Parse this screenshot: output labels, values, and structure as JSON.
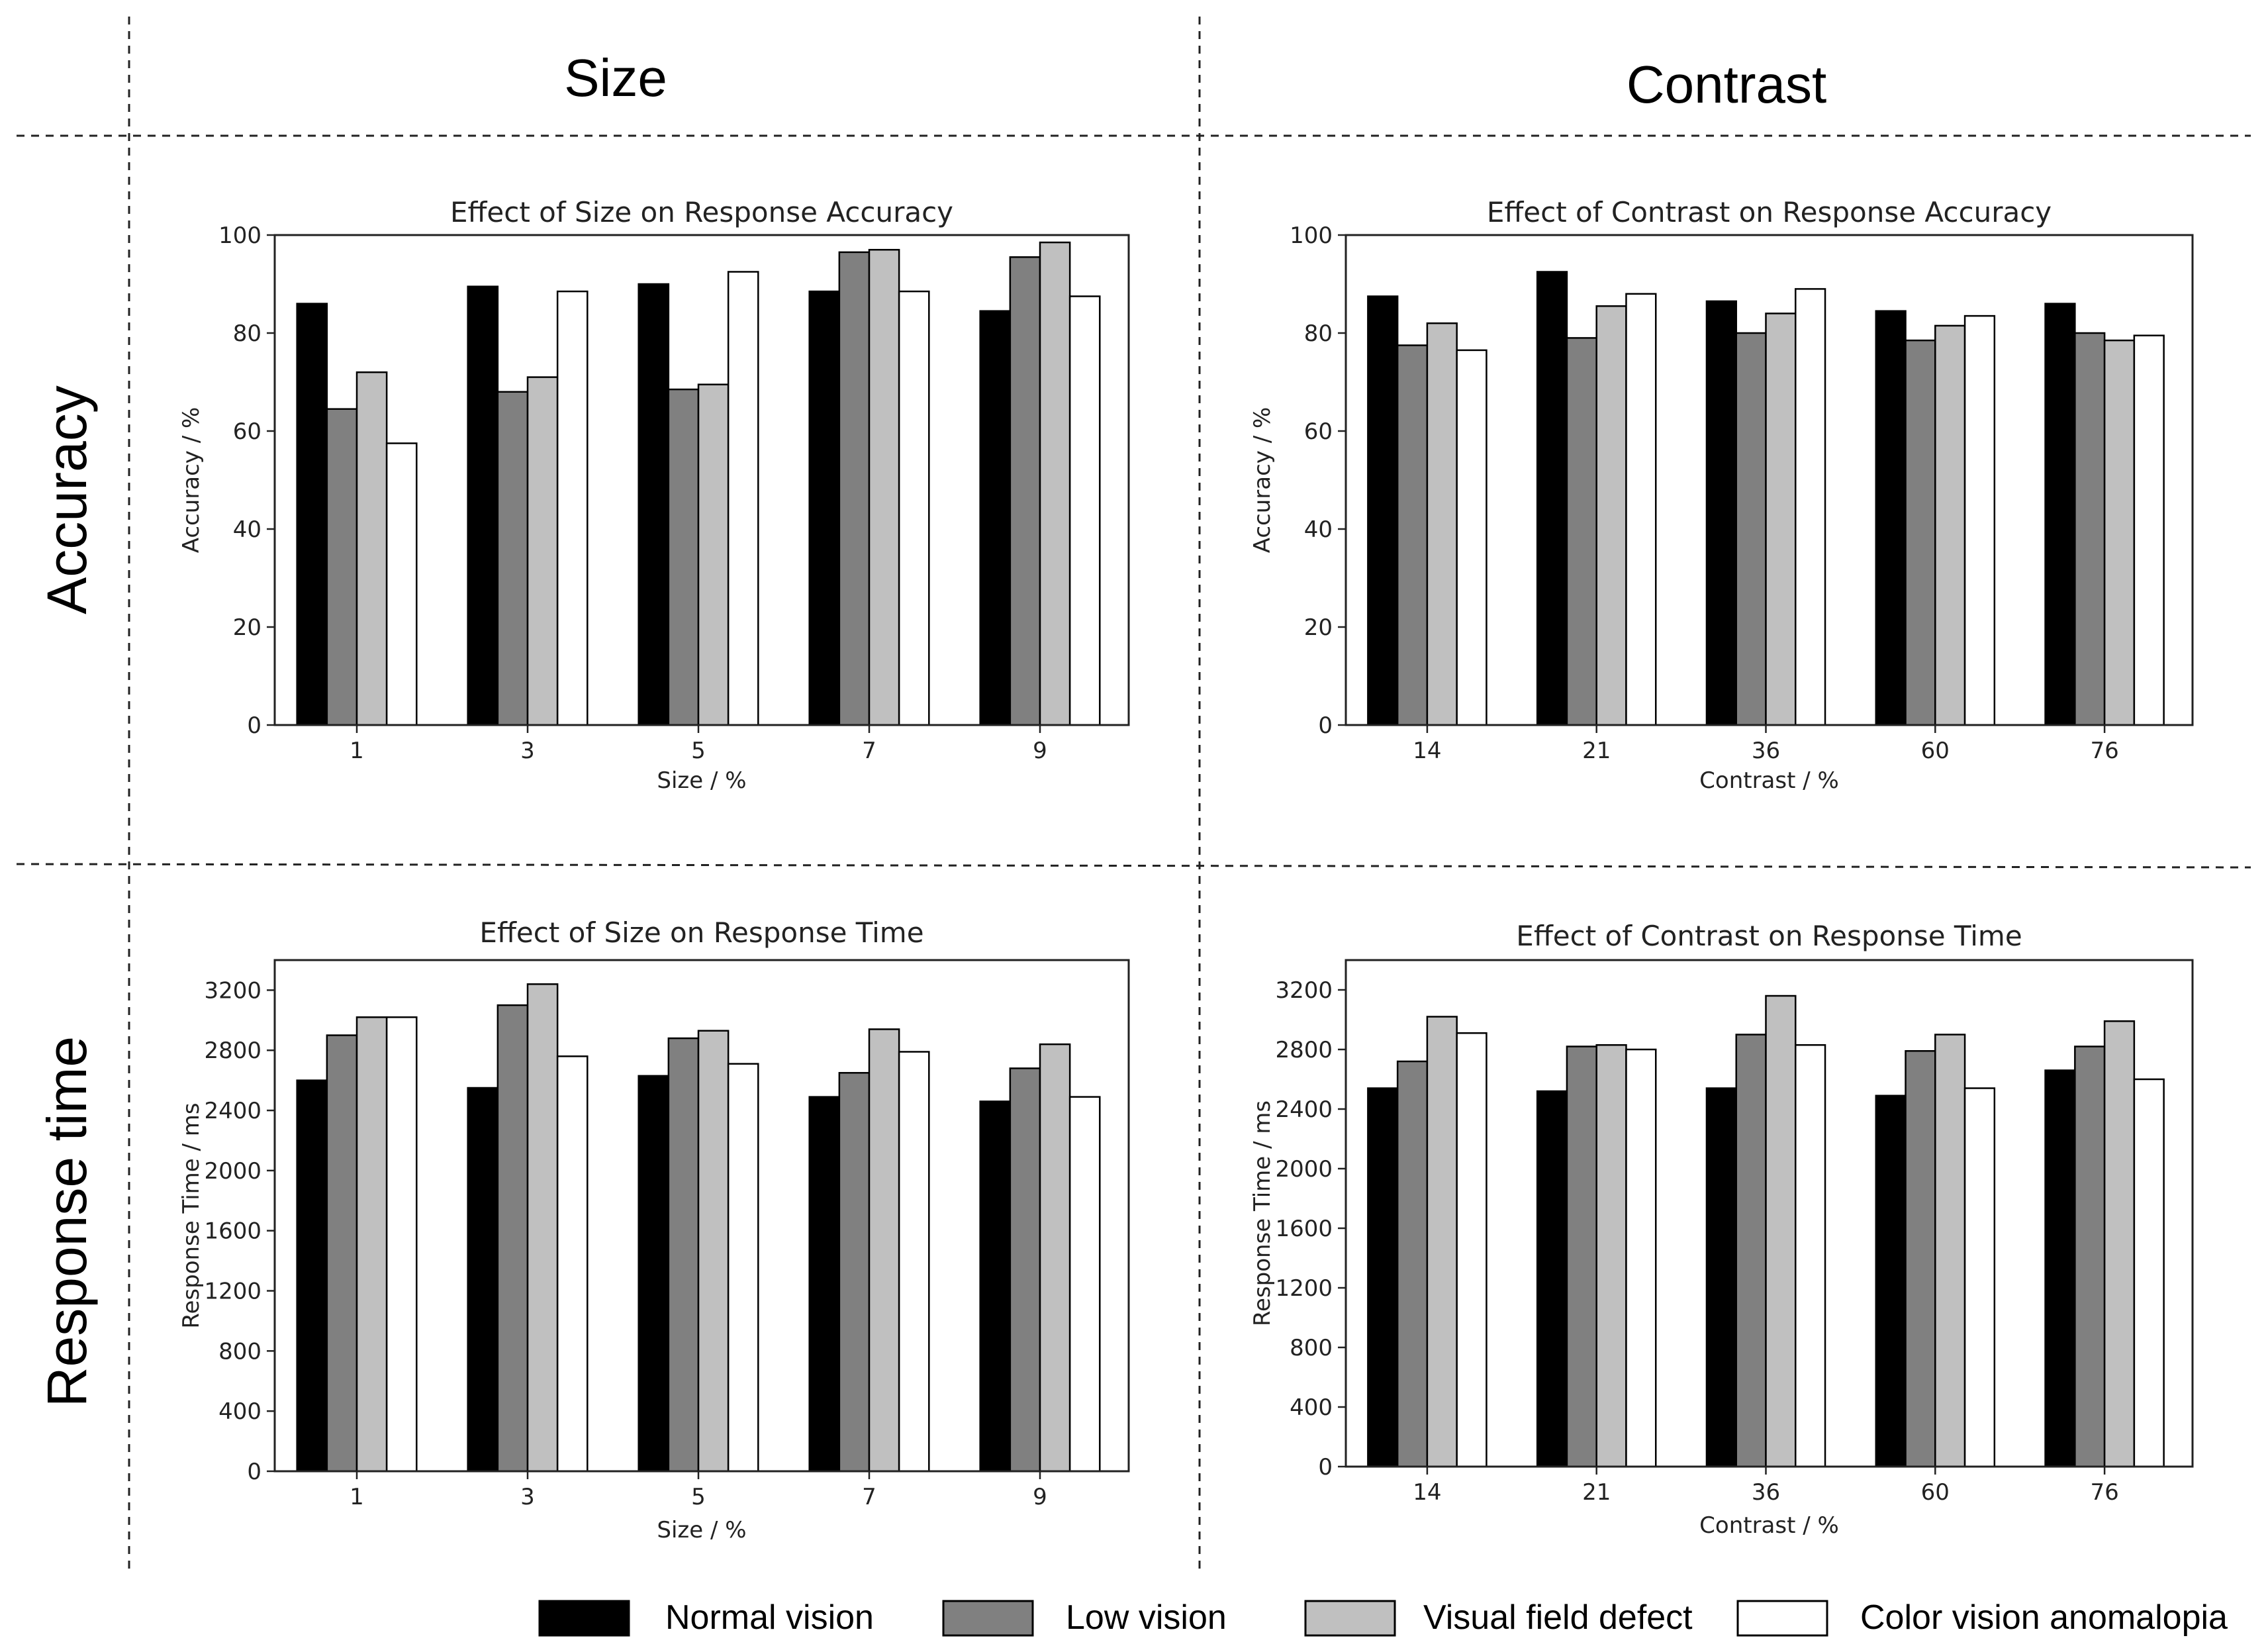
{
  "headers": {
    "col_size": "Size",
    "col_contrast": "Contrast",
    "row_accuracy": "Accuracy",
    "row_response": "Response  time"
  },
  "legend": [
    {
      "label": "Normal vision",
      "color": "#000000"
    },
    {
      "label": "Low vision",
      "color": "#808080"
    },
    {
      "label": "Visual field defect",
      "color": "#c0c0c0"
    },
    {
      "label": "Color vision anomalopia",
      "color": "#ffffff"
    }
  ],
  "chart_data": [
    {
      "id": "size-accuracy",
      "type": "bar",
      "title": "Effect of Size on Response Accuracy",
      "xlabel": "Size / %",
      "ylabel": "Accuracy / %",
      "categories": [
        "1",
        "3",
        "5",
        "7",
        "9"
      ],
      "ylim": [
        0,
        100
      ],
      "yticks": [
        0,
        20,
        40,
        60,
        80,
        100
      ],
      "series": [
        {
          "name": "Normal vision",
          "values": [
            86,
            89.5,
            90,
            88.5,
            84.5
          ]
        },
        {
          "name": "Low vision",
          "values": [
            64.5,
            68,
            68.5,
            96.5,
            95.5
          ]
        },
        {
          "name": "Visual field defect",
          "values": [
            72,
            71,
            69.5,
            97,
            98.5
          ]
        },
        {
          "name": "Color vision anomalopia",
          "values": [
            57.5,
            88.5,
            92.5,
            88.5,
            87.5
          ]
        }
      ]
    },
    {
      "id": "contrast-accuracy",
      "type": "bar",
      "title": "Effect of Contrast on Response Accuracy",
      "xlabel": "Contrast / %",
      "ylabel": "Accuracy / %",
      "categories": [
        "14",
        "21",
        "36",
        "60",
        "76"
      ],
      "ylim": [
        0,
        100
      ],
      "yticks": [
        0,
        20,
        40,
        60,
        80,
        100
      ],
      "series": [
        {
          "name": "Normal vision",
          "values": [
            87.5,
            92.5,
            86.5,
            84.5,
            86
          ]
        },
        {
          "name": "Low vision",
          "values": [
            77.5,
            79,
            80,
            78.5,
            80
          ]
        },
        {
          "name": "Visual field defect",
          "values": [
            82,
            85.5,
            84,
            81.5,
            78.5
          ]
        },
        {
          "name": "Color vision anomalopia",
          "values": [
            76.5,
            88,
            89,
            83.5,
            79.5
          ]
        }
      ]
    },
    {
      "id": "size-time",
      "type": "bar",
      "title": "Effect of Size on Response Time",
      "xlabel": "Size / %",
      "ylabel": "Response Time / ms",
      "categories": [
        "1",
        "3",
        "5",
        "7",
        "9"
      ],
      "ylim": [
        0,
        3400
      ],
      "yticks": [
        0,
        400,
        800,
        1200,
        1600,
        2000,
        2400,
        2800,
        3200
      ],
      "series": [
        {
          "name": "Normal vision",
          "values": [
            2600,
            2550,
            2630,
            2490,
            2460
          ]
        },
        {
          "name": "Low vision",
          "values": [
            2900,
            3100,
            2880,
            2650,
            2680
          ]
        },
        {
          "name": "Visual field defect",
          "values": [
            3020,
            3240,
            2930,
            2940,
            2840
          ]
        },
        {
          "name": "Color vision anomalopia",
          "values": [
            3020,
            2760,
            2710,
            2790,
            2490
          ]
        }
      ]
    },
    {
      "id": "contrast-time",
      "type": "bar",
      "title": "Effect of Contrast on Response Time",
      "xlabel": "Contrast / %",
      "ylabel": "Response Time / ms",
      "categories": [
        "14",
        "21",
        "36",
        "60",
        "76"
      ],
      "ylim": [
        0,
        3400
      ],
      "yticks": [
        0,
        400,
        800,
        1200,
        1600,
        2000,
        2400,
        2800,
        3200
      ],
      "series": [
        {
          "name": "Normal vision",
          "values": [
            2540,
            2520,
            2540,
            2490,
            2660
          ]
        },
        {
          "name": "Low vision",
          "values": [
            2720,
            2820,
            2900,
            2790,
            2820
          ]
        },
        {
          "name": "Visual field defect",
          "values": [
            3020,
            2830,
            3160,
            2900,
            2990
          ]
        },
        {
          "name": "Color vision anomalopia",
          "values": [
            2910,
            2800,
            2830,
            2540,
            2600
          ]
        }
      ]
    }
  ]
}
